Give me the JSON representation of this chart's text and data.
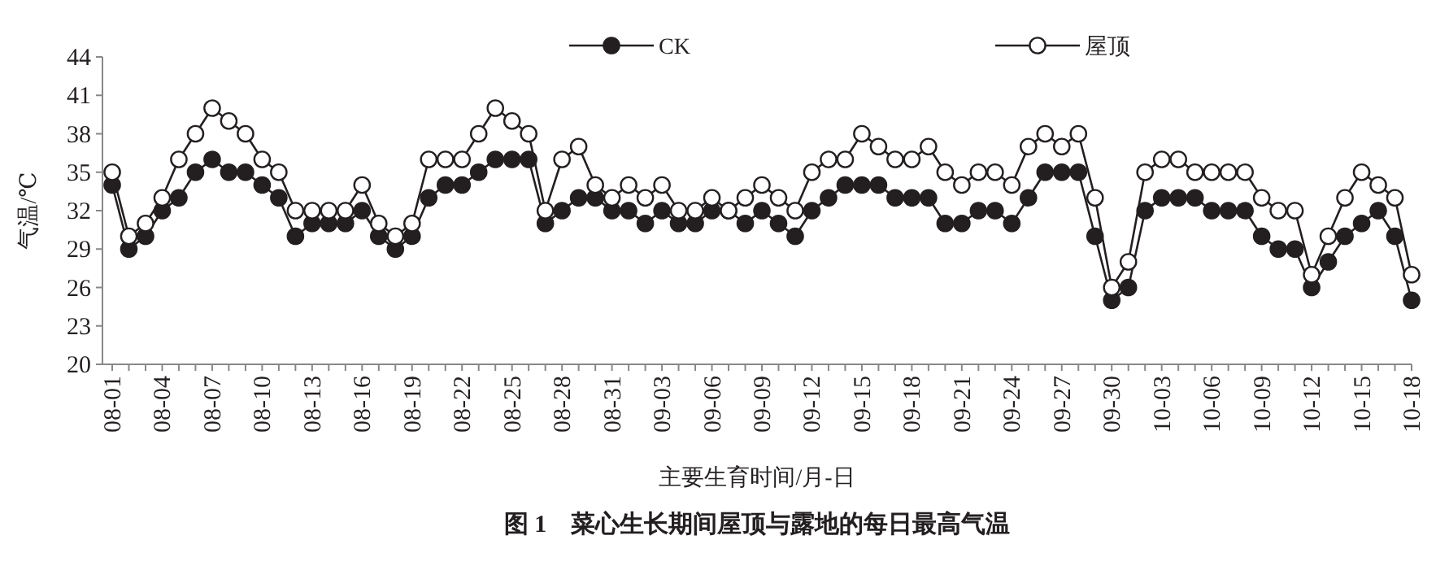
{
  "chart_data": {
    "type": "line",
    "title": "图 1　菜心生长期间屋顶与露地的每日最高气温",
    "xlabel": "主要生育时间/月-日",
    "ylabel": "气温/℃",
    "categories": [
      "08-01",
      null,
      null,
      "08-04",
      null,
      null,
      "08-07",
      null,
      null,
      "08-10",
      null,
      null,
      "08-13",
      null,
      null,
      "08-16",
      null,
      null,
      "08-19",
      null,
      null,
      "08-22",
      null,
      null,
      "08-25",
      null,
      null,
      "08-28",
      null,
      null,
      "08-31",
      null,
      null,
      "09-03",
      null,
      null,
      "09-06",
      null,
      null,
      "09-09",
      null,
      null,
      "09-12",
      null,
      null,
      "09-15",
      null,
      null,
      "09-18",
      null,
      null,
      "09-21",
      null,
      null,
      "09-24",
      null,
      null,
      "09-27",
      null,
      null,
      "09-30",
      null,
      null,
      "10-03",
      null,
      null,
      "10-06",
      null,
      null,
      "10-09",
      null,
      null,
      "10-12",
      null,
      null,
      "10-15",
      null,
      null,
      "10-18"
    ],
    "series": [
      {
        "name": "CK",
        "color": "#231f20",
        "values": [
          34,
          29,
          30,
          32,
          33,
          35,
          36,
          35,
          35,
          34,
          33,
          30,
          31,
          31,
          31,
          32,
          30,
          29,
          30,
          33,
          34,
          34,
          35,
          36,
          36,
          36,
          31,
          32,
          33,
          33,
          32,
          32,
          31,
          32,
          31,
          31,
          32,
          32,
          31,
          32,
          31,
          30,
          32,
          33,
          34,
          34,
          34,
          33,
          33,
          33,
          31,
          31,
          32,
          32,
          31,
          33,
          35,
          35,
          35,
          30,
          25,
          26,
          32,
          33,
          33,
          33,
          32,
          32,
          32,
          30,
          29,
          29,
          26,
          28,
          30,
          31,
          32,
          30,
          25
        ]
      },
      {
        "name": "屋顶",
        "color": "#231f20",
        "values": [
          35,
          30,
          31,
          33,
          36,
          38,
          40,
          39,
          38,
          36,
          35,
          32,
          32,
          32,
          32,
          34,
          31,
          30,
          31,
          36,
          36,
          36,
          38,
          40,
          39,
          38,
          32,
          36,
          37,
          34,
          33,
          34,
          33,
          34,
          32,
          32,
          33,
          32,
          33,
          34,
          33,
          32,
          35,
          36,
          36,
          38,
          37,
          36,
          36,
          37,
          35,
          34,
          35,
          35,
          34,
          37,
          38,
          37,
          38,
          33,
          26,
          28,
          35,
          36,
          36,
          35,
          35,
          35,
          35,
          33,
          32,
          32,
          27,
          30,
          33,
          35,
          34,
          33,
          27
        ]
      }
    ],
    "ylim": [
      20,
      44
    ],
    "yticks": [
      20,
      23,
      26,
      29,
      32,
      35,
      38,
      41,
      44
    ],
    "grid": false,
    "legend": "top",
    "marker": "circle",
    "line_style": "solid"
  }
}
